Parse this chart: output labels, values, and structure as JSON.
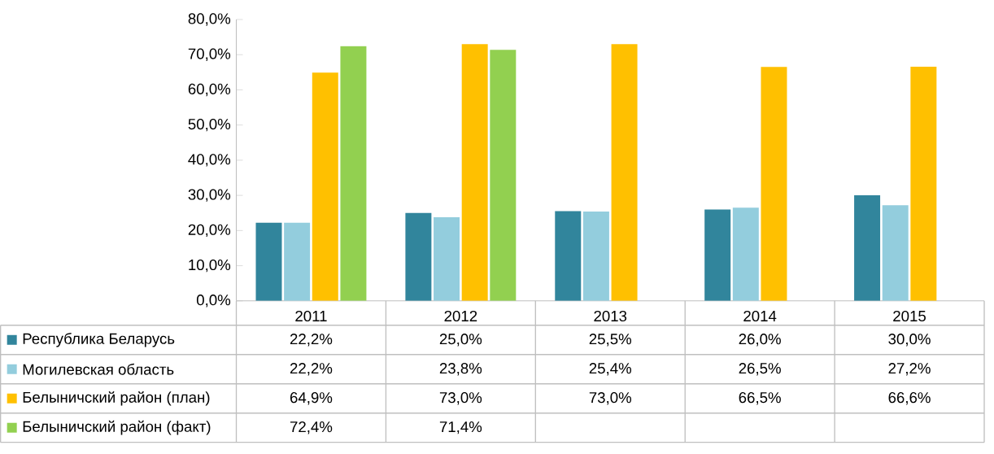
{
  "chart_data": {
    "type": "bar",
    "categories": [
      "2011",
      "2012",
      "2013",
      "2014",
      "2015"
    ],
    "series": [
      {
        "name": "Республика Беларусь",
        "color": "#31859c",
        "values": [
          22.2,
          25.0,
          25.5,
          26.0,
          30.0
        ],
        "value_labels": [
          "22,2%",
          "25,0%",
          "25,5%",
          "26,0%",
          "30,0%"
        ]
      },
      {
        "name": "Могилевская область",
        "color": "#93cddd",
        "values": [
          22.2,
          23.8,
          25.4,
          26.5,
          27.2
        ],
        "value_labels": [
          "22,2%",
          "23,8%",
          "25,4%",
          "26,5%",
          "27,2%"
        ]
      },
      {
        "name": "Белыничский район (план)",
        "color": "#ffc000",
        "values": [
          64.9,
          73.0,
          73.0,
          66.5,
          66.6
        ],
        "value_labels": [
          "64,9%",
          "73,0%",
          "73,0%",
          "66,5%",
          "66,6%"
        ]
      },
      {
        "name": "Белыничский район (факт)",
        "color": "#92d050",
        "values": [
          72.4,
          71.4,
          null,
          null,
          null
        ],
        "value_labels": [
          "72,4%",
          "71,4%",
          null,
          null,
          null
        ]
      }
    ],
    "ylim": [
      0,
      80
    ],
    "yticks": [
      {
        "value": 0,
        "label": "0,0%"
      },
      {
        "value": 10,
        "label": "10,0%"
      },
      {
        "value": 20,
        "label": "20,0%"
      },
      {
        "value": 30,
        "label": "30,0%"
      },
      {
        "value": 40,
        "label": "40,0%"
      },
      {
        "value": 50,
        "label": "50,0%"
      },
      {
        "value": 60,
        "label": "60,0%"
      },
      {
        "value": 70,
        "label": "70,0%"
      },
      {
        "value": 80,
        "label": "80,0%"
      }
    ],
    "legend": "bottom"
  }
}
